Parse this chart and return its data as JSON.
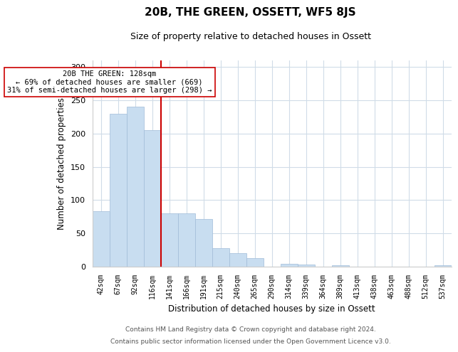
{
  "title": "20B, THE GREEN, OSSETT, WF5 8JS",
  "subtitle": "Size of property relative to detached houses in Ossett",
  "xlabel": "Distribution of detached houses by size in Ossett",
  "ylabel": "Number of detached properties",
  "bar_labels": [
    "42sqm",
    "67sqm",
    "92sqm",
    "116sqm",
    "141sqm",
    "166sqm",
    "191sqm",
    "215sqm",
    "240sqm",
    "265sqm",
    "290sqm",
    "314sqm",
    "339sqm",
    "364sqm",
    "389sqm",
    "413sqm",
    "438sqm",
    "463sqm",
    "488sqm",
    "512sqm",
    "537sqm"
  ],
  "bar_values": [
    83,
    230,
    240,
    205,
    80,
    80,
    72,
    28,
    20,
    13,
    0,
    4,
    3,
    0,
    2,
    0,
    0,
    0,
    0,
    0,
    2
  ],
  "bar_color": "#c8ddf0",
  "bar_edge_color": "#a0bcd8",
  "vline_x": 3.5,
  "vline_color": "#cc0000",
  "annotation_title": "20B THE GREEN: 128sqm",
  "annotation_line1": "← 69% of detached houses are smaller (669)",
  "annotation_line2": "31% of semi-detached houses are larger (298) →",
  "annotation_box_color": "#ffffff",
  "annotation_box_edge": "#cc0000",
  "ylim": [
    0,
    310
  ],
  "yticks": [
    0,
    50,
    100,
    150,
    200,
    250,
    300
  ],
  "footnote1": "Contains HM Land Registry data © Crown copyright and database right 2024.",
  "footnote2": "Contains public sector information licensed under the Open Government Licence v3.0.",
  "background_color": "#ffffff",
  "grid_color": "#d0dce8"
}
